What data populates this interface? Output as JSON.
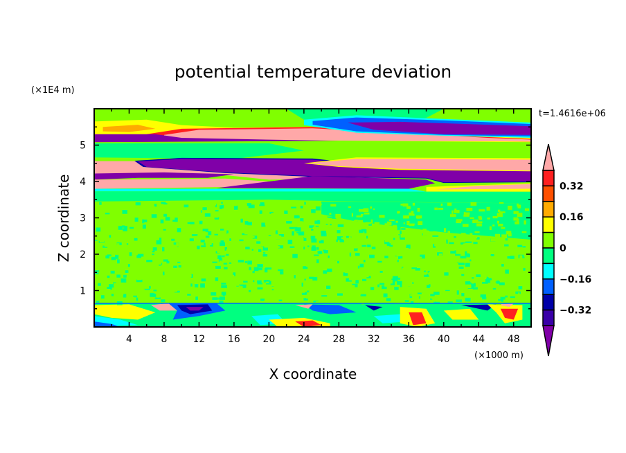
{
  "chart_data": {
    "type": "heatmap",
    "title": "potential temperature deviation",
    "xlabel": "X coordinate",
    "ylabel": "Z coordinate",
    "x_unit": "(×1000 m)",
    "y_unit": "(×1E4 m)",
    "time_label": "t=1.4616e+06",
    "xlim": [
      0,
      50
    ],
    "ylim": [
      0,
      6
    ],
    "x_ticks": [
      4,
      8,
      12,
      16,
      20,
      24,
      28,
      32,
      36,
      40,
      44,
      48
    ],
    "y_ticks": [
      1,
      2,
      3,
      4,
      5
    ],
    "colorbar": {
      "levels": [
        0.4,
        0.32,
        0.24,
        0.16,
        0.08,
        0.0,
        -0.08,
        -0.16,
        -0.24,
        -0.32,
        -0.4
      ],
      "labels": [
        "0.32",
        "0.16",
        "0",
        "−0.16",
        "−0.32"
      ],
      "label_values": [
        0.32,
        0.16,
        0,
        -0.16,
        -0.32
      ],
      "over_color": "#ffa8a8",
      "under_color": "#8000a8",
      "colors": [
        "#ff2020",
        "#ff5000",
        "#ffaa00",
        "#ffff00",
        "#80ff00",
        "#00ff80",
        "#00ffff",
        "#0060ff",
        "#0000a8",
        "#3a00a8"
      ]
    },
    "palette": {
      "pink": "#ffa8a8",
      "red": "#ff2020",
      "orange": "#ffaa00",
      "yellow": "#ffff00",
      "lime": "#80ff00",
      "green": "#00ff80",
      "cyan": "#00ffff",
      "blue": "#0060ff",
      "navy": "#0000a8",
      "purple": "#8000a8"
    },
    "regions": [
      {
        "c": "lime",
        "p": [
          [
            0,
            6
          ],
          [
            50,
            6
          ],
          [
            50,
            0
          ],
          [
            0,
            0
          ]
        ]
      },
      {
        "c": "green",
        "p": [
          [
            22,
            6
          ],
          [
            40,
            6
          ],
          [
            38,
            5.75
          ],
          [
            30,
            5.6
          ],
          [
            24,
            5.7
          ]
        ]
      },
      {
        "c": "yellow",
        "p": [
          [
            0,
            5.65
          ],
          [
            6,
            5.7
          ],
          [
            10,
            5.55
          ],
          [
            16,
            5.48
          ],
          [
            30,
            5.52
          ],
          [
            40,
            5.32
          ],
          [
            50,
            5.22
          ],
          [
            50,
            5.08
          ],
          [
            0,
            5.18
          ]
        ]
      },
      {
        "c": "orange",
        "p": [
          [
            1,
            5.5
          ],
          [
            5,
            5.56
          ],
          [
            7,
            5.45
          ],
          [
            4,
            5.36
          ],
          [
            1,
            5.38
          ]
        ]
      },
      {
        "c": "red",
        "p": [
          [
            6,
            5.3
          ],
          [
            10,
            5.45
          ],
          [
            25,
            5.5
          ],
          [
            40,
            5.27
          ],
          [
            50,
            5.17
          ],
          [
            50,
            5.1
          ],
          [
            6,
            5.18
          ]
        ]
      },
      {
        "c": "pink",
        "p": [
          [
            8,
            5.28
          ],
          [
            12,
            5.42
          ],
          [
            25,
            5.46
          ],
          [
            35,
            5.34
          ],
          [
            45,
            5.2
          ],
          [
            50,
            5.15
          ],
          [
            50,
            5.1
          ],
          [
            8,
            5.15
          ]
        ]
      },
      {
        "c": "cyan",
        "p": [
          [
            24,
            5.7
          ],
          [
            30,
            5.82
          ],
          [
            40,
            5.72
          ],
          [
            50,
            5.62
          ],
          [
            50,
            5.2
          ],
          [
            40,
            5.26
          ],
          [
            30,
            5.34
          ],
          [
            24,
            5.55
          ]
        ]
      },
      {
        "c": "blue",
        "p": [
          [
            25,
            5.66
          ],
          [
            30,
            5.76
          ],
          [
            40,
            5.68
          ],
          [
            50,
            5.58
          ],
          [
            50,
            5.24
          ],
          [
            40,
            5.28
          ],
          [
            30,
            5.38
          ],
          [
            25,
            5.56
          ]
        ]
      },
      {
        "c": "purple",
        "p": [
          [
            29,
            5.62
          ],
          [
            35,
            5.64
          ],
          [
            50,
            5.52
          ],
          [
            50,
            5.28
          ],
          [
            40,
            5.3
          ],
          [
            32,
            5.42
          ]
        ]
      },
      {
        "c": "purple",
        "p": [
          [
            0,
            5.3
          ],
          [
            7,
            5.3
          ],
          [
            10,
            5.2
          ],
          [
            20,
            5.15
          ],
          [
            28,
            5.12
          ],
          [
            0,
            5.08
          ]
        ]
      },
      {
        "c": "green",
        "p": [
          [
            0,
            5.05
          ],
          [
            20,
            5.05
          ],
          [
            24,
            4.85
          ],
          [
            16,
            4.62
          ],
          [
            0,
            4.66
          ]
        ]
      },
      {
        "c": "pink",
        "p": [
          [
            0,
            4.56
          ],
          [
            6,
            4.56
          ],
          [
            16,
            4.3
          ],
          [
            25,
            4.2
          ],
          [
            37,
            4.2
          ],
          [
            36,
            4.1
          ],
          [
            20,
            4.05
          ],
          [
            14,
            4.2
          ],
          [
            0,
            4.1
          ]
        ]
      },
      {
        "c": "navy",
        "p": [
          [
            4.6,
            4.57
          ],
          [
            10,
            4.65
          ],
          [
            25,
            4.63
          ],
          [
            35,
            4.38
          ],
          [
            50,
            4.33
          ],
          [
            50,
            3.98
          ],
          [
            40,
            3.96
          ],
          [
            38,
            4.08
          ],
          [
            25,
            4.13
          ],
          [
            15,
            4.23
          ],
          [
            5.6,
            4.4
          ]
        ]
      },
      {
        "c": "purple",
        "p": [
          [
            5,
            4.55
          ],
          [
            10,
            4.62
          ],
          [
            25,
            4.6
          ],
          [
            35,
            4.35
          ],
          [
            50,
            4.3
          ],
          [
            50,
            4.0
          ],
          [
            40,
            3.98
          ],
          [
            38,
            4.1
          ],
          [
            25,
            4.15
          ],
          [
            15,
            4.25
          ],
          [
            6,
            4.4
          ]
        ]
      },
      {
        "c": "yellow",
        "p": [
          [
            24,
            4.5
          ],
          [
            30,
            4.66
          ],
          [
            50,
            4.64
          ],
          [
            50,
            4.28
          ],
          [
            35,
            4.32
          ],
          [
            28,
            4.4
          ]
        ]
      },
      {
        "c": "pink",
        "p": [
          [
            24.5,
            4.5
          ],
          [
            30,
            4.62
          ],
          [
            50,
            4.6
          ],
          [
            50,
            4.3
          ],
          [
            35,
            4.35
          ],
          [
            28,
            4.42
          ]
        ]
      },
      {
        "c": "purple",
        "p": [
          [
            0,
            4.22
          ],
          [
            8,
            4.25
          ],
          [
            16,
            4.2
          ],
          [
            13,
            4.1
          ],
          [
            5,
            4.1
          ],
          [
            0,
            4.05
          ]
        ]
      },
      {
        "c": "pink",
        "p": [
          [
            0,
            4.05
          ],
          [
            15,
            4.08
          ],
          [
            20,
            4.0
          ],
          [
            16,
            3.85
          ],
          [
            0,
            3.8
          ]
        ]
      },
      {
        "c": "purple",
        "p": [
          [
            14,
            3.82
          ],
          [
            20,
            4.0
          ],
          [
            25,
            4.15
          ],
          [
            38,
            4.05
          ],
          [
            39,
            3.95
          ],
          [
            36,
            3.8
          ]
        ]
      },
      {
        "c": "cyan",
        "p": [
          [
            0,
            3.8
          ],
          [
            36,
            3.8
          ],
          [
            38,
            3.72
          ],
          [
            0,
            3.73
          ]
        ]
      },
      {
        "c": "yellow",
        "p": [
          [
            38,
            3.72
          ],
          [
            50,
            3.72
          ],
          [
            50,
            3.95
          ],
          [
            44,
            3.9
          ],
          [
            38,
            3.85
          ]
        ]
      },
      {
        "c": "pink",
        "p": [
          [
            39,
            3.78
          ],
          [
            50,
            3.8
          ],
          [
            50,
            3.93
          ],
          [
            44,
            3.88
          ]
        ]
      },
      {
        "c": "green",
        "p": [
          [
            0,
            3.73
          ],
          [
            50,
            3.72
          ],
          [
            50,
            3.4
          ],
          [
            30,
            3.45
          ],
          [
            20,
            3.5
          ],
          [
            0,
            3.45
          ]
        ]
      },
      {
        "c": "green",
        "p": [
          [
            26,
            3.45
          ],
          [
            50,
            3.4
          ],
          [
            50,
            2.4
          ],
          [
            40,
            2.6
          ],
          [
            30,
            2.9
          ],
          [
            26,
            3.1
          ]
        ]
      },
      {
        "c": "green",
        "p": [
          [
            0,
            0.65
          ],
          [
            50,
            0.65
          ],
          [
            50,
            0
          ],
          [
            0,
            0
          ]
        ]
      },
      {
        "c": "yellow",
        "p": [
          [
            0,
            0.6
          ],
          [
            4,
            0.62
          ],
          [
            7,
            0.4
          ],
          [
            5,
            0.2
          ],
          [
            2,
            0.25
          ],
          [
            0,
            0.35
          ]
        ]
      },
      {
        "c": "cyan",
        "p": [
          [
            0,
            0.3
          ],
          [
            3,
            0.2
          ],
          [
            5,
            0.05
          ],
          [
            0,
            0.02
          ]
        ]
      },
      {
        "c": "blue",
        "p": [
          [
            0,
            0.15
          ],
          [
            2,
            0.08
          ],
          [
            3,
            0
          ],
          [
            0,
            0
          ]
        ]
      },
      {
        "c": "pink",
        "p": [
          [
            6.5,
            0.6
          ],
          [
            8.5,
            0.65
          ],
          [
            9.5,
            0.45
          ],
          [
            7.5,
            0.45
          ]
        ]
      },
      {
        "c": "blue",
        "p": [
          [
            8.5,
            0.65
          ],
          [
            14,
            0.65
          ],
          [
            15,
            0.45
          ],
          [
            12,
            0.3
          ],
          [
            9,
            0.2
          ],
          [
            9.5,
            0.45
          ]
        ]
      },
      {
        "c": "navy",
        "p": [
          [
            9.5,
            0.6
          ],
          [
            13,
            0.62
          ],
          [
            13.5,
            0.45
          ],
          [
            11,
            0.35
          ],
          [
            10,
            0.45
          ]
        ]
      },
      {
        "c": "purple",
        "p": [
          [
            10.5,
            0.55
          ],
          [
            12.5,
            0.55
          ],
          [
            12,
            0.45
          ],
          [
            11,
            0.45
          ]
        ]
      },
      {
        "c": "cyan",
        "p": [
          [
            18,
            0.3
          ],
          [
            21,
            0.35
          ],
          [
            22,
            0.1
          ],
          [
            19,
            0.05
          ]
        ]
      },
      {
        "c": "yellow",
        "p": [
          [
            20,
            0.2
          ],
          [
            24,
            0.25
          ],
          [
            27,
            0.1
          ],
          [
            27,
            0
          ],
          [
            21,
            0
          ]
        ]
      },
      {
        "c": "red",
        "p": [
          [
            23,
            0.15
          ],
          [
            25,
            0.18
          ],
          [
            26,
            0.05
          ],
          [
            24,
            0
          ]
        ]
      },
      {
        "c": "blue",
        "p": [
          [
            24,
            0.62
          ],
          [
            28,
            0.6
          ],
          [
            30,
            0.4
          ],
          [
            27,
            0.35
          ],
          [
            25,
            0.45
          ]
        ]
      },
      {
        "c": "pink",
        "p": [
          [
            23,
            0.6
          ],
          [
            25,
            0.62
          ],
          [
            24.5,
            0.5
          ]
        ]
      },
      {
        "c": "navy",
        "p": [
          [
            31,
            0.6
          ],
          [
            33,
            0.55
          ],
          [
            32,
            0.45
          ]
        ]
      },
      {
        "c": "cyan",
        "p": [
          [
            32,
            0.3
          ],
          [
            35,
            0.35
          ],
          [
            36,
            0.15
          ],
          [
            33,
            0.1
          ]
        ]
      },
      {
        "c": "yellow",
        "p": [
          [
            35,
            0.55
          ],
          [
            38,
            0.5
          ],
          [
            39,
            0.1
          ],
          [
            37,
            0
          ],
          [
            35,
            0.1
          ]
        ]
      },
      {
        "c": "red",
        "p": [
          [
            36,
            0.4
          ],
          [
            37.5,
            0.4
          ],
          [
            38,
            0.1
          ],
          [
            36.5,
            0.05
          ]
        ]
      },
      {
        "c": "yellow",
        "p": [
          [
            40,
            0.45
          ],
          [
            43,
            0.5
          ],
          [
            44,
            0.2
          ],
          [
            41,
            0.2
          ]
        ]
      },
      {
        "c": "navy",
        "p": [
          [
            42,
            0.6
          ],
          [
            46,
            0.62
          ],
          [
            45,
            0.45
          ]
        ]
      },
      {
        "c": "yellow",
        "p": [
          [
            45,
            0.62
          ],
          [
            49,
            0.6
          ],
          [
            49,
            0.2
          ],
          [
            47,
            0.1
          ],
          [
            46,
            0.4
          ]
        ]
      },
      {
        "c": "red",
        "p": [
          [
            46.5,
            0.5
          ],
          [
            48.5,
            0.5
          ],
          [
            48,
            0.2
          ],
          [
            47,
            0.25
          ]
        ]
      },
      {
        "c": "pink",
        "p": [
          [
            46,
            0.62
          ],
          [
            48,
            0.64
          ],
          [
            47.5,
            0.55
          ]
        ]
      }
    ]
  }
}
